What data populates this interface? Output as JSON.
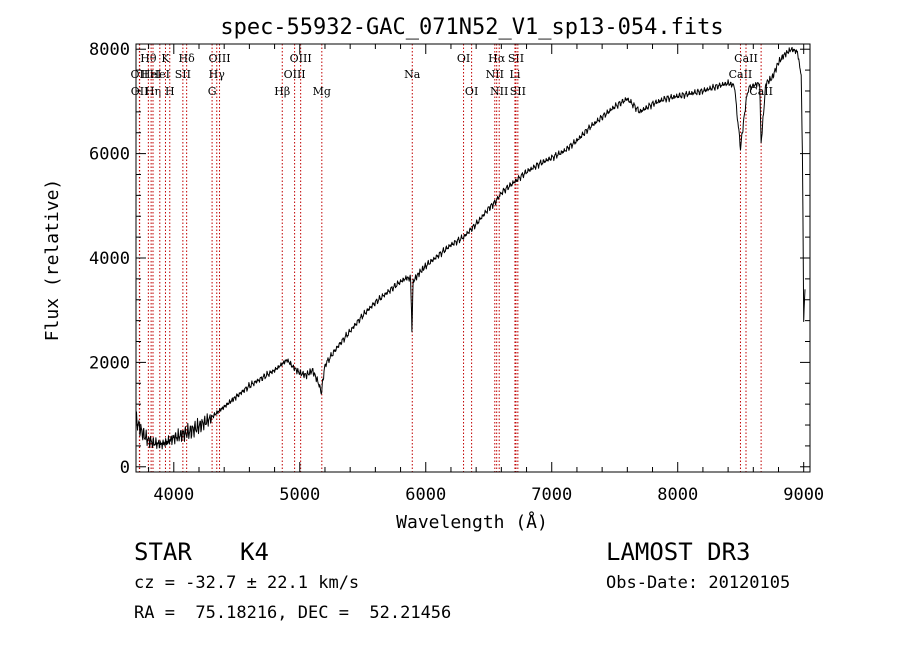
{
  "chart_data": {
    "type": "line",
    "title": "spec-55932-GAC_071N52_V1_sp13-054.fits",
    "xlabel": "Wavelength (Å)",
    "ylabel": "Flux (relative)",
    "xlim": [
      3700,
      9050
    ],
    "ylim": [
      -100,
      8100
    ],
    "x_ticks": [
      4000,
      5000,
      6000,
      7000,
      8000,
      9000
    ],
    "y_ticks": [
      0,
      2000,
      4000,
      6000,
      8000
    ],
    "grid": false,
    "series": [
      {
        "name": "flux",
        "x": [
          3700,
          3750,
          3800,
          3850,
          3900,
          3950,
          4000,
          4050,
          4100,
          4150,
          4200,
          4250,
          4300,
          4350,
          4400,
          4450,
          4500,
          4600,
          4700,
          4800,
          4850,
          4900,
          4950,
          5000,
          5050,
          5100,
          5150,
          5170,
          5200,
          5300,
          5400,
          5500,
          5600,
          5700,
          5800,
          5850,
          5880,
          5890,
          5900,
          5950,
          6000,
          6100,
          6200,
          6300,
          6400,
          6500,
          6563,
          6600,
          6700,
          6800,
          6900,
          7000,
          7100,
          7200,
          7300,
          7400,
          7500,
          7600,
          7700,
          7800,
          7900,
          8000,
          8100,
          8200,
          8300,
          8400,
          8450,
          8498,
          8540,
          8560,
          8600,
          8650,
          8662,
          8700,
          8750,
          8800,
          8850,
          8900,
          8950,
          8980,
          8990,
          9000,
          9010
        ],
        "y": [
          900,
          650,
          500,
          450,
          430,
          480,
          550,
          600,
          650,
          700,
          780,
          850,
          950,
          1050,
          1150,
          1250,
          1350,
          1550,
          1700,
          1850,
          1950,
          2050,
          1900,
          1800,
          1750,
          1850,
          1600,
          1400,
          1950,
          2300,
          2600,
          2900,
          3150,
          3350,
          3550,
          3620,
          3600,
          2600,
          3550,
          3720,
          3850,
          4050,
          4250,
          4400,
          4650,
          4950,
          5100,
          5250,
          5450,
          5650,
          5800,
          5920,
          6050,
          6250,
          6500,
          6700,
          6900,
          7050,
          6800,
          6950,
          7050,
          7100,
          7150,
          7200,
          7280,
          7350,
          7300,
          6100,
          6950,
          7250,
          7300,
          7350,
          6200,
          7350,
          7450,
          7750,
          7900,
          8000,
          7950,
          7500,
          6000,
          2800,
          3400
        ]
      }
    ],
    "line_markers": [
      {
        "wavelength": 3727,
        "label": "OII",
        "row": 2
      },
      {
        "wavelength": 3729,
        "label": "OII",
        "row": 3
      },
      {
        "wavelength": 3798,
        "label": "Hθ",
        "row": 1
      },
      {
        "wavelength": 3820,
        "label": "HeI",
        "row": 2
      },
      {
        "wavelength": 3835,
        "label": "Hη",
        "row": 3
      },
      {
        "wavelength": 3889,
        "label": "HeI",
        "row": 2
      },
      {
        "wavelength": 3934,
        "label": "K",
        "row": 1
      },
      {
        "wavelength": 3968,
        "label": "H",
        "row": 3
      },
      {
        "wavelength": 4072,
        "label": "SII",
        "row": 2
      },
      {
        "wavelength": 4102,
        "label": "Hδ",
        "row": 1
      },
      {
        "wavelength": 4304,
        "label": "G",
        "row": 3
      },
      {
        "wavelength": 4341,
        "label": "Hγ",
        "row": 2
      },
      {
        "wavelength": 4363,
        "label": "OIII",
        "row": 1
      },
      {
        "wavelength": 4861,
        "label": "Hβ",
        "row": 3
      },
      {
        "wavelength": 4959,
        "label": "OIII",
        "row": 2
      },
      {
        "wavelength": 5007,
        "label": "OIII",
        "row": 1
      },
      {
        "wavelength": 5175,
        "label": "Mg",
        "row": 3
      },
      {
        "wavelength": 5893,
        "label": "Na",
        "row": 2
      },
      {
        "wavelength": 6300,
        "label": "OI",
        "row": 1
      },
      {
        "wavelength": 6364,
        "label": "OI",
        "row": 3
      },
      {
        "wavelength": 6548,
        "label": "NII",
        "row": 2
      },
      {
        "wavelength": 6563,
        "label": "Hα",
        "row": 1
      },
      {
        "wavelength": 6583,
        "label": "NII",
        "row": 3
      },
      {
        "wavelength": 6708,
        "label": "Li",
        "row": 2
      },
      {
        "wavelength": 6716,
        "label": "SII",
        "row": 1
      },
      {
        "wavelength": 6731,
        "label": "SII",
        "row": 3
      },
      {
        "wavelength": 8498,
        "label": "CaII",
        "row": 2
      },
      {
        "wavelength": 8542,
        "label": "CaII",
        "row": 1
      },
      {
        "wavelength": 8662,
        "label": "CaII",
        "row": 3
      }
    ],
    "colors": {
      "spectrum": "#000000",
      "markers": "#c00000",
      "axes": "#000000"
    }
  },
  "info": {
    "object_class": "STAR",
    "subclass": "K4",
    "survey": "LAMOST DR3",
    "cz": "cz = -32.7 ± 22.1 km/s",
    "obs_date": "Obs-Date: 20120105",
    "coords": "RA =  75.18216, DEC =  52.21456"
  }
}
